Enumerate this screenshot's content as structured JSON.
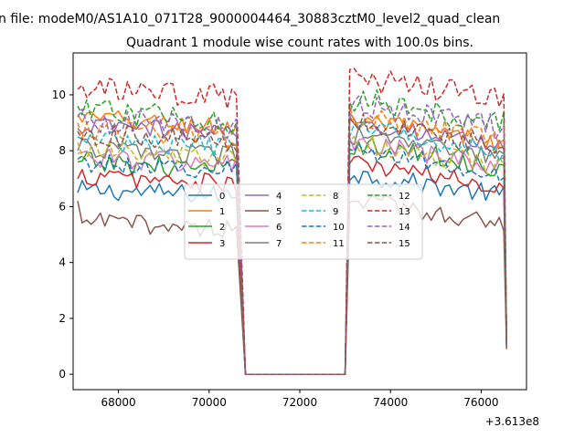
{
  "suptitle": "n file: modeM0/AS1A10_071T28_9000004464_30883cztM0_level2_quad_clean",
  "chart_data": {
    "type": "line",
    "title": "Quadrant 1 module wise count rates with 100.0s bins.",
    "xlabel": "",
    "ylabel": "",
    "x_offset_label": "+3.613e8",
    "xlim": [
      67000,
      77000
    ],
    "ylim": [
      -0.55,
      11.5
    ],
    "xticks": [
      68000,
      70000,
      72000,
      74000,
      76000
    ],
    "xtick_labels": [
      "68000",
      "70000",
      "72000",
      "74000",
      "76000"
    ],
    "yticks": [
      0,
      2,
      4,
      6,
      8,
      10
    ],
    "ytick_labels": [
      "0",
      "2",
      "4",
      "6",
      "8",
      "10"
    ],
    "grid": false,
    "legend_placement": "center",
    "legend_ncol": 4,
    "segments": [
      {
        "x_start": 67100,
        "x_end": 70600,
        "step": 100
      },
      {
        "x_start": 70800,
        "x_end": 72900,
        "step": 100
      },
      {
        "x_start": 73000,
        "x_end": 76500,
        "step": 100
      }
    ],
    "final_point_x": 76560,
    "series": [
      {
        "name": "0",
        "color": "#1f77b4",
        "dashed": false,
        "mean_first": 6.6,
        "mean_second": 6.6,
        "start": 6.5,
        "end": 1.0,
        "amp": 0.35,
        "trend": -0.2
      },
      {
        "name": "1",
        "color": "#ff7f0e",
        "dashed": false,
        "mean_first": 9.2,
        "mean_second": 8.6,
        "start": 9.3,
        "end": 1.0,
        "amp": 0.35,
        "trend": -0.4
      },
      {
        "name": "2",
        "color": "#2ca02c",
        "dashed": false,
        "mean_first": 7.6,
        "mean_second": 7.7,
        "start": 7.6,
        "end": 1.2,
        "amp": 0.4,
        "trend": -0.3
      },
      {
        "name": "3",
        "color": "#d62728",
        "dashed": false,
        "mean_first": 7.1,
        "mean_second": 7.0,
        "start": 7.0,
        "end": 1.1,
        "amp": 0.35,
        "trend": -0.3
      },
      {
        "name": "4",
        "color": "#9467bd",
        "dashed": false,
        "mean_first": 8.9,
        "mean_second": 8.5,
        "start": 8.8,
        "end": 1.1,
        "amp": 0.35,
        "trend": -0.3
      },
      {
        "name": "5",
        "color": "#8c564b",
        "dashed": false,
        "mean_first": 5.5,
        "mean_second": 5.7,
        "start": 6.2,
        "end": 0.9,
        "amp": 0.35,
        "trend": -0.3
      },
      {
        "name": "6",
        "color": "#e377c2",
        "dashed": false,
        "mean_first": 7.8,
        "mean_second": 7.7,
        "start": 7.9,
        "end": 1.1,
        "amp": 0.4,
        "trend": -0.3
      },
      {
        "name": "7",
        "color": "#7f7f7f",
        "dashed": false,
        "mean_first": 8.1,
        "mean_second": 8.0,
        "start": 8.0,
        "end": 1.2,
        "amp": 0.35,
        "trend": -0.3
      },
      {
        "name": "8",
        "color": "#bcbd22",
        "dashed": true,
        "mean_first": 8.0,
        "mean_second": 7.7,
        "start": 8.3,
        "end": 1.3,
        "amp": 0.4,
        "trend": -0.3
      },
      {
        "name": "9",
        "color": "#17becf",
        "dashed": true,
        "mean_first": 8.4,
        "mean_second": 8.3,
        "start": 8.5,
        "end": 1.2,
        "amp": 0.4,
        "trend": -0.3
      },
      {
        "name": "10",
        "color": "#1f77b4",
        "dashed": true,
        "mean_first": 7.6,
        "mean_second": 7.5,
        "start": 7.7,
        "end": 1.1,
        "amp": 0.35,
        "trend": -0.3
      },
      {
        "name": "11",
        "color": "#ff7f0e",
        "dashed": true,
        "mean_first": 8.8,
        "mean_second": 8.7,
        "start": 9.0,
        "end": 1.2,
        "amp": 0.4,
        "trend": -0.3
      },
      {
        "name": "12",
        "color": "#2ca02c",
        "dashed": true,
        "mean_first": 9.4,
        "mean_second": 9.3,
        "start": 9.6,
        "end": 1.3,
        "amp": 0.45,
        "trend": -0.3
      },
      {
        "name": "13",
        "color": "#d62728",
        "dashed": true,
        "mean_first": 10.2,
        "mean_second": 10.1,
        "start": 10.2,
        "end": 1.2,
        "amp": 0.45,
        "trend": -0.3
      },
      {
        "name": "14",
        "color": "#9467bd",
        "dashed": true,
        "mean_first": 9.1,
        "mean_second": 9.1,
        "start": 9.2,
        "end": 1.2,
        "amp": 0.45,
        "trend": -0.3
      },
      {
        "name": "15",
        "color": "#8c564b",
        "dashed": true,
        "mean_first": 8.6,
        "mean_second": 8.5,
        "start": 8.7,
        "end": 1.2,
        "amp": 0.4,
        "trend": -0.3
      }
    ]
  }
}
